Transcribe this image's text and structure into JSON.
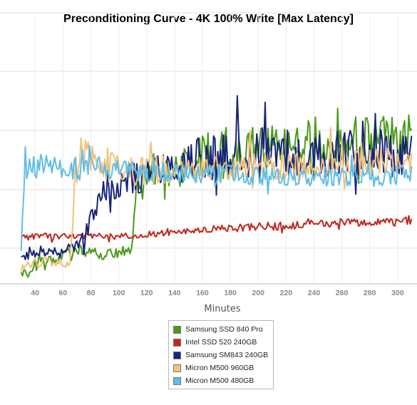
{
  "chart_data": {
    "type": "line",
    "title": "Preconditioning Curve - 4K 100% Write [Max Latency]",
    "xlabel": "Minutes",
    "ylabel": "",
    "xlim": [
      30,
      310
    ],
    "ylim": [
      0,
      1
    ],
    "x_ticks": [
      40,
      60,
      80,
      100,
      120,
      140,
      160,
      180,
      200,
      220,
      240,
      260,
      280,
      300
    ],
    "grid": true,
    "legend_position": "bottom-center",
    "series": [
      {
        "name": "Samsung SSD 840 Pro",
        "color": "#4a9a1a",
        "x": [
          30,
          40,
          50,
          60,
          70,
          80,
          90,
          100,
          106,
          108,
          110,
          112,
          114,
          116,
          118,
          120,
          130,
          140,
          150,
          160,
          170,
          180,
          190,
          200,
          210,
          220,
          230,
          240,
          250,
          260,
          270,
          280,
          290,
          300,
          310
        ],
        "y": [
          0.04,
          0.08,
          0.11,
          0.13,
          0.16,
          0.15,
          0.14,
          0.15,
          0.16,
          0.15,
          0.2,
          0.4,
          0.48,
          0.52,
          0.5,
          0.53,
          0.56,
          0.57,
          0.59,
          0.63,
          0.63,
          0.64,
          0.64,
          0.67,
          0.66,
          0.68,
          0.69,
          0.7,
          0.69,
          0.7,
          0.72,
          0.71,
          0.72,
          0.73,
          0.74
        ],
        "spread": [
          0.02,
          0.025,
          0.03,
          0.03,
          0.03,
          0.025,
          0.03,
          0.03,
          0.03,
          0.03,
          0.05,
          0.08,
          0.09,
          0.1,
          0.1,
          0.1,
          0.1,
          0.1,
          0.1,
          0.12,
          0.12,
          0.12,
          0.12,
          0.12,
          0.12,
          0.13,
          0.13,
          0.13,
          0.13,
          0.13,
          0.13,
          0.13,
          0.13,
          0.13,
          0.13
        ]
      },
      {
        "name": "Intel SSD 520 240GB",
        "color": "#c0281e",
        "x": [
          30,
          40,
          60,
          80,
          100,
          120,
          140,
          160,
          180,
          200,
          220,
          240,
          260,
          280,
          300,
          310
        ],
        "y": [
          0.22,
          0.23,
          0.23,
          0.23,
          0.23,
          0.24,
          0.25,
          0.26,
          0.27,
          0.28,
          0.28,
          0.29,
          0.3,
          0.3,
          0.3,
          0.31
        ],
        "spread": [
          0.015,
          0.015,
          0.015,
          0.015,
          0.015,
          0.015,
          0.015,
          0.015,
          0.02,
          0.02,
          0.02,
          0.02,
          0.02,
          0.02,
          0.02,
          0.02
        ]
      },
      {
        "name": "Samsung SM843 240GB",
        "color": "#18237a",
        "x": [
          30,
          40,
          50,
          60,
          70,
          75,
          80,
          85,
          90,
          100,
          110,
          120,
          130,
          140,
          150,
          160,
          170,
          180,
          190,
          200,
          210,
          220,
          230,
          240,
          250,
          260,
          270,
          280,
          290,
          300,
          310
        ],
        "y": [
          0.13,
          0.14,
          0.15,
          0.16,
          0.18,
          0.22,
          0.3,
          0.4,
          0.45,
          0.5,
          0.52,
          0.54,
          0.56,
          0.58,
          0.6,
          0.61,
          0.63,
          0.62,
          0.63,
          0.64,
          0.63,
          0.64,
          0.65,
          0.64,
          0.65,
          0.64,
          0.65,
          0.64,
          0.65,
          0.63,
          0.64
        ],
        "spread": [
          0.02,
          0.02,
          0.02,
          0.02,
          0.03,
          0.05,
          0.06,
          0.07,
          0.08,
          0.08,
          0.09,
          0.09,
          0.1,
          0.1,
          0.11,
          0.11,
          0.12,
          0.12,
          0.12,
          0.12,
          0.12,
          0.12,
          0.12,
          0.12,
          0.12,
          0.12,
          0.12,
          0.12,
          0.12,
          0.12,
          0.12
        ]
      },
      {
        "name": "Micron M500 960GB",
        "color": "#f0c27a",
        "x": [
          30,
          40,
          50,
          60,
          65,
          67,
          69,
          72,
          80,
          90,
          100,
          110,
          120,
          140,
          160,
          180,
          200,
          220,
          240,
          260,
          280,
          300,
          310
        ],
        "y": [
          0.08,
          0.09,
          0.1,
          0.1,
          0.1,
          0.3,
          0.55,
          0.65,
          0.62,
          0.58,
          0.57,
          0.55,
          0.56,
          0.56,
          0.57,
          0.57,
          0.58,
          0.58,
          0.59,
          0.59,
          0.6,
          0.6,
          0.6
        ],
        "spread": [
          0.02,
          0.025,
          0.025,
          0.025,
          0.03,
          0.05,
          0.08,
          0.1,
          0.09,
          0.08,
          0.07,
          0.07,
          0.07,
          0.07,
          0.07,
          0.07,
          0.07,
          0.07,
          0.07,
          0.07,
          0.07,
          0.07,
          0.07
        ]
      },
      {
        "name": "Micron M500 480GB",
        "color": "#5fbde8",
        "x": [
          30,
          32,
          34,
          40,
          60,
          80,
          100,
          120,
          140,
          160,
          180,
          200,
          220,
          240,
          260,
          280,
          300,
          310
        ],
        "y": [
          0.18,
          0.5,
          0.57,
          0.58,
          0.57,
          0.57,
          0.56,
          0.55,
          0.55,
          0.54,
          0.54,
          0.53,
          0.53,
          0.53,
          0.53,
          0.53,
          0.53,
          0.53
        ],
        "spread": [
          0.03,
          0.05,
          0.06,
          0.06,
          0.06,
          0.06,
          0.05,
          0.05,
          0.05,
          0.05,
          0.05,
          0.05,
          0.05,
          0.05,
          0.05,
          0.05,
          0.05,
          0.05
        ]
      }
    ]
  }
}
